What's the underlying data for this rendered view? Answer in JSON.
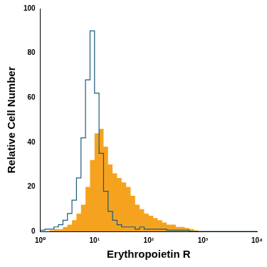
{
  "chart_data": {
    "type": "histogram",
    "xlabel": "Erythropoietin R",
    "ylabel": "Relative Cell Number",
    "log": "x",
    "grid": false,
    "xlim": [
      1,
      10000
    ],
    "xticks": [
      {
        "value": 1,
        "label": "10⁰"
      },
      {
        "value": 10,
        "label": "10¹"
      },
      {
        "value": 100,
        "label": "10²"
      },
      {
        "value": 1000,
        "label": "10³"
      },
      {
        "value": 10000,
        "label": "10⁴"
      }
    ],
    "ylim": [
      0,
      100
    ],
    "yticks": [
      0,
      20,
      40,
      60,
      80,
      100
    ],
    "bins": [
      1,
      1.212,
      1.468,
      1.778,
      2.154,
      2.61,
      3.162,
      3.831,
      4.642,
      5.623,
      6.813,
      8.254,
      10,
      12.12,
      14.68,
      17.78,
      21.54,
      26.1,
      31.62,
      38.31,
      46.42,
      56.23,
      68.13,
      82.54,
      100,
      121.2,
      146.8,
      177.8,
      215.4,
      261,
      316.2,
      383.1,
      464.2,
      562.3,
      681.3,
      825.4,
      1000,
      1212,
      1468,
      1778,
      2154,
      2610,
      3162,
      3831,
      4642,
      5623,
      6813,
      8254,
      10000
    ],
    "series": [
      {
        "type": "bar",
        "color": "#f5a31f",
        "values": [
          0,
          0,
          0.5,
          1,
          1,
          2,
          3,
          5,
          8,
          12,
          20,
          32,
          44,
          46,
          38,
          30,
          26,
          24,
          22,
          20,
          16,
          12,
          10,
          8,
          7,
          6,
          5,
          4,
          3,
          3,
          2,
          2,
          1.5,
          1,
          0.5,
          0,
          0,
          0,
          0,
          0,
          0,
          0,
          0,
          0,
          0,
          0,
          0,
          0
        ]
      },
      {
        "type": "step",
        "color": "#1a5a7a",
        "values": [
          0.5,
          1,
          1,
          2,
          3,
          5,
          8,
          14,
          24,
          42,
          68,
          90,
          62,
          35,
          18,
          9,
          5,
          3,
          2,
          2,
          2,
          1,
          2,
          1,
          1,
          1,
          1,
          1,
          0.5,
          0.5,
          0.5,
          0.5,
          0.5,
          0,
          0,
          0,
          0,
          0,
          0,
          0,
          0,
          0,
          0,
          0,
          0,
          0,
          0,
          0
        ]
      }
    ]
  }
}
